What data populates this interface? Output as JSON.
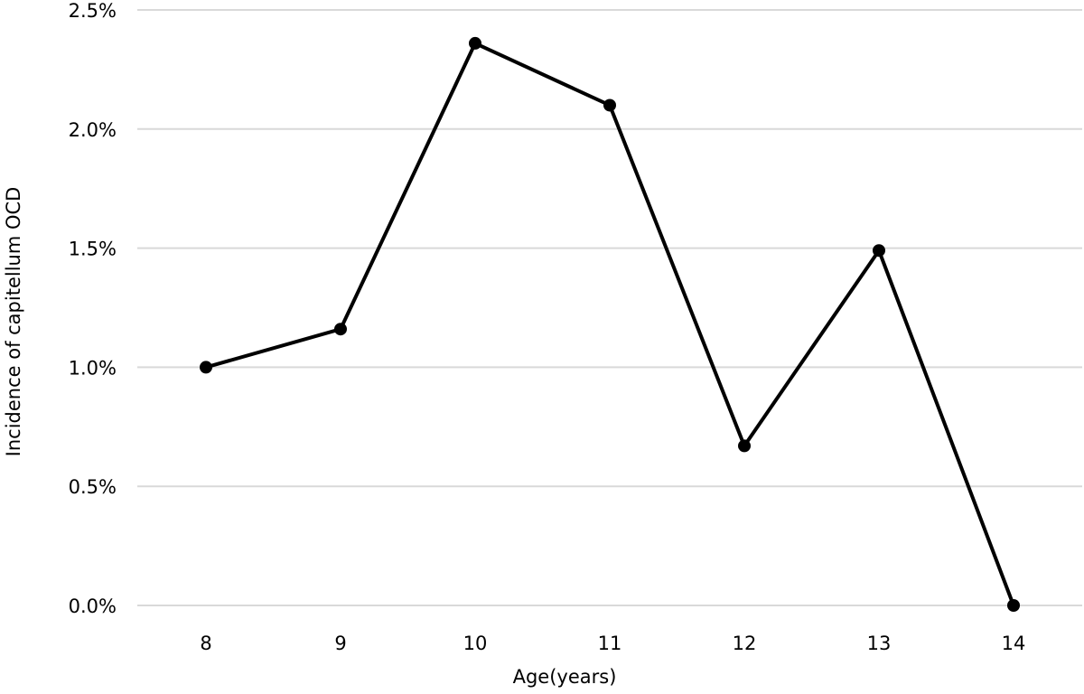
{
  "chart_data": {
    "type": "line",
    "title": "",
    "xlabel": "Age(years)",
    "ylabel": "Incidence of capitellum OCD",
    "categories": [
      "8",
      "9",
      "10",
      "11",
      "12",
      "13",
      "14"
    ],
    "y_ticks": [
      "0.0%",
      "0.5%",
      "1.0%",
      "1.5%",
      "2.0%",
      "2.5%"
    ],
    "ylim": [
      0,
      2.5
    ],
    "y_unit": "%",
    "grid": "horizontal",
    "legend": "none",
    "series": [
      {
        "values": [
          1.0,
          1.16,
          2.36,
          2.1,
          0.67,
          1.49,
          0.0
        ],
        "color": "#000000"
      }
    ]
  }
}
